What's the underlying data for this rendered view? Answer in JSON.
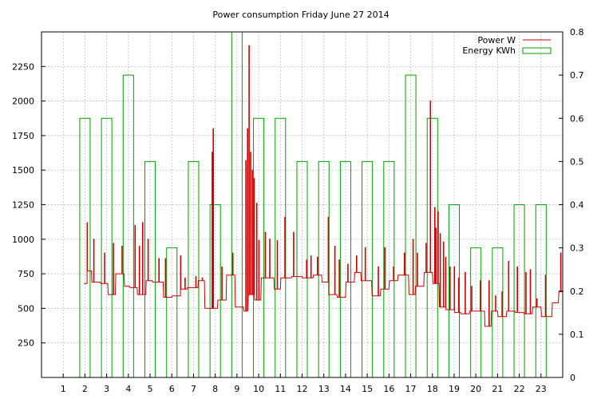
{
  "chart_data": {
    "type": "line",
    "title": "Power consumption Friday June 27 2014",
    "xlabel": "",
    "ylabel": "",
    "y2label": "",
    "x_ticks": [
      1,
      2,
      3,
      4,
      5,
      6,
      7,
      8,
      9,
      10,
      11,
      12,
      13,
      14,
      15,
      16,
      17,
      18,
      19,
      20,
      21,
      22,
      23
    ],
    "xlim": [
      0,
      24.0
    ],
    "y_ticks": [
      250,
      500,
      750,
      1000,
      1250,
      1500,
      1750,
      2000,
      2250
    ],
    "ylim": [
      0,
      2500
    ],
    "y2_ticks": [
      "0",
      "0.1",
      "0.2",
      "0.3",
      "0.4",
      "0.5",
      "0.6",
      "0.7",
      "0.8"
    ],
    "y2lim": [
      0,
      0.8
    ],
    "grid": true,
    "legend_position": "top-right",
    "legend": [
      {
        "name": "Power W",
        "color": "#cc0000",
        "style": "line"
      },
      {
        "name": "Energy KWh",
        "color": "#00a000",
        "style": "box"
      }
    ],
    "series": [
      {
        "name": "Energy KWh",
        "type": "bar",
        "color": "#00a000",
        "bar_width": 0.48,
        "x": [
          2,
          3,
          4,
          5,
          6,
          7,
          8,
          9,
          10,
          11,
          12,
          13,
          14,
          15,
          16,
          17,
          18,
          19,
          20,
          21,
          22,
          23
        ],
        "values": [
          0.6,
          0.6,
          0.7,
          0.5,
          0.3,
          0.5,
          0.4,
          0.8,
          0.6,
          0.6,
          0.5,
          0.5,
          0.5,
          0.5,
          0.5,
          0.7,
          0.6,
          0.4,
          0.3,
          0.3,
          0.4,
          0.4
        ]
      },
      {
        "name": "Power W",
        "type": "line",
        "color": "#cc0000",
        "base_levels": {
          "x": [
            1.95,
            2.1,
            2.3,
            2.7,
            3.05,
            3.4,
            3.8,
            4.05,
            4.4,
            4.8,
            5.1,
            5.6,
            6.0,
            6.4,
            6.7,
            7.2,
            7.5,
            7.85,
            8.1,
            8.5,
            8.9,
            9.3,
            9.5,
            9.8,
            10.1,
            10.7,
            11.0,
            11.5,
            12.0,
            12.5,
            12.9,
            13.2,
            13.6,
            14.0,
            14.4,
            14.7,
            15.2,
            15.6,
            16.0,
            16.4,
            16.9,
            17.2,
            17.6,
            18.0,
            18.3,
            18.6,
            19.0,
            19.3,
            19.7,
            20.0,
            20.4,
            20.7,
            21.0,
            21.4,
            21.8,
            22.2,
            22.6,
            23.0,
            23.5,
            23.8
          ],
          "y": [
            680,
            770,
            690,
            680,
            600,
            750,
            660,
            650,
            600,
            700,
            690,
            580,
            590,
            640,
            650,
            700,
            500,
            500,
            560,
            740,
            510,
            480,
            600,
            560,
            720,
            640,
            720,
            730,
            720,
            740,
            690,
            600,
            580,
            690,
            760,
            700,
            590,
            640,
            700,
            740,
            600,
            660,
            760,
            680,
            510,
            490,
            470,
            460,
            480,
            480,
            370,
            480,
            440,
            480,
            470,
            460,
            510,
            440,
            540,
            620
          ]
        },
        "peaks": {
          "x": [
            2.1,
            2.4,
            2.9,
            3.3,
            3.7,
            4.3,
            4.5,
            4.65,
            4.9,
            5.4,
            5.7,
            6.4,
            6.6,
            7.1,
            7.4,
            7.85,
            7.9,
            8.3,
            8.8,
            9.4,
            9.48,
            9.55,
            9.62,
            9.7,
            9.78,
            9.9,
            10.0,
            10.3,
            10.5,
            10.85,
            11.2,
            11.6,
            12.2,
            12.4,
            12.7,
            13.2,
            13.5,
            13.7,
            14.1,
            14.5,
            14.9,
            15.5,
            15.8,
            16.2,
            16.7,
            17.1,
            17.3,
            17.7,
            17.9,
            18.1,
            18.15,
            18.25,
            18.35,
            18.5,
            18.6,
            18.8,
            19.0,
            19.2,
            19.5,
            19.8,
            20.2,
            20.6,
            20.9,
            21.2,
            21.5,
            21.9,
            22.3,
            22.5,
            22.8,
            23.2,
            23.9
          ],
          "y": [
            1120,
            1000,
            900,
            970,
            950,
            1100,
            950,
            1120,
            1000,
            860,
            860,
            880,
            720,
            730,
            720,
            1630,
            1800,
            800,
            900,
            1570,
            1800,
            2400,
            1630,
            1500,
            1440,
            1260,
            990,
            1050,
            1000,
            990,
            1160,
            1050,
            850,
            880,
            870,
            1160,
            950,
            850,
            820,
            880,
            940,
            800,
            940,
            800,
            900,
            1000,
            900,
            970,
            2000,
            1230,
            1080,
            1200,
            1040,
            980,
            870,
            800,
            800,
            720,
            760,
            660,
            700,
            700,
            590,
            620,
            840,
            800,
            760,
            780,
            570,
            740,
            900
          ]
        }
      }
    ]
  }
}
